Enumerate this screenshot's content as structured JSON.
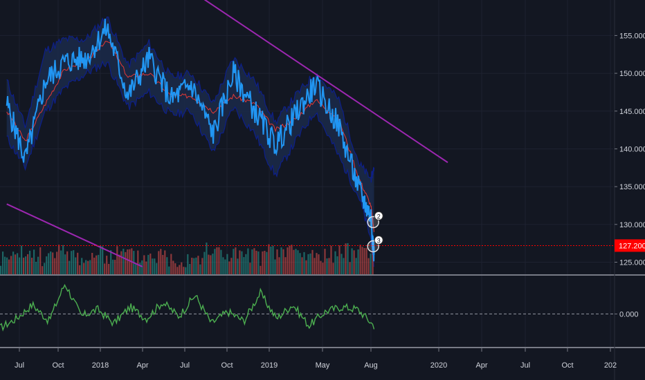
{
  "colors": {
    "background": "#131722",
    "price_line": "#2196f3",
    "ma_line": "#e53935",
    "band_fill": "#1b2a4a",
    "band_edge": "#0d1f8a",
    "trendline": "#9c27b0",
    "volume_up": "#26a69a",
    "volume_down": "#ef5350",
    "oscillator": "#4caf50",
    "current_price": "#ff0000",
    "text": "#d1d4dc",
    "divider": "#787b86"
  },
  "chart_data": [
    {
      "type": "line",
      "panel": "price",
      "y_ticks": [
        "155.000",
        "150.000",
        "145.000",
        "140.000",
        "135.000",
        "130.000",
        "125.000"
      ],
      "ylim": [
        123.4,
        159.7
      ],
      "current_price_label": "127.200",
      "current_price": 127.2,
      "x_dates": [
        "2017-06-01",
        "2017-07-15",
        "2017-09-01",
        "2017-10-15",
        "2017-12-01",
        "2018-01-15",
        "2018-03-01",
        "2018-04-15",
        "2018-06-01",
        "2018-07-15",
        "2018-09-01",
        "2018-10-15",
        "2018-12-01",
        "2019-01-15",
        "2019-03-01",
        "2019-04-15",
        "2019-06-01",
        "2019-07-10",
        "2019-08-01",
        "2019-08-08"
      ],
      "series": [
        {
          "values": [
            146.0,
            138.5,
            149.0,
            151.5,
            152.0,
            156.0,
            147.0,
            152.0,
            146.5,
            148.5,
            142.0,
            150.0,
            145.0,
            140.5,
            144.5,
            148.5,
            143.0,
            134.5,
            131.0,
            126.0
          ]
        },
        {
          "values": [
            145.0,
            141.0,
            146.0,
            150.5,
            151.5,
            154.5,
            149.5,
            150.0,
            147.0,
            147.0,
            145.0,
            147.0,
            146.0,
            142.5,
            144.0,
            146.5,
            144.0,
            136.0,
            132.5,
            129.0
          ]
        }
      ],
      "band_upper": [
        149.0,
        143.0,
        153.0,
        154.5,
        154.5,
        157.5,
        151.0,
        154.0,
        149.5,
        150.0,
        146.0,
        152.0,
        149.0,
        143.5,
        147.0,
        150.0,
        146.5,
        138.0,
        136.0,
        137.5
      ],
      "band_lower": [
        141.5,
        137.5,
        145.0,
        148.0,
        150.0,
        151.5,
        145.5,
        147.5,
        144.5,
        145.0,
        139.5,
        145.5,
        142.0,
        136.5,
        141.0,
        145.0,
        139.0,
        133.5,
        128.0,
        124.5
      ],
      "trendlines": [
        {
          "from": [
            "2018-07-01",
            161.5
          ],
          "to": [
            "2020-01-20",
            138.2
          ]
        },
        {
          "from": [
            "2017-06-01",
            132.7
          ],
          "to": [
            "2018-04-01",
            124.4
          ]
        }
      ],
      "markers": [
        "2",
        "3"
      ]
    },
    {
      "type": "bar",
      "panel": "volume",
      "note_values": "relative heights",
      "values": [
        0.3,
        0.5,
        0.4,
        0.6,
        0.35,
        0.45,
        0.55,
        0.4,
        0.5,
        0.3,
        0.45,
        0.65,
        0.5,
        0.4,
        0.55,
        0.7,
        0.45,
        0.5,
        0.6,
        0.8
      ]
    },
    {
      "type": "line",
      "panel": "oscillator",
      "y_ticks": [
        "0.000"
      ],
      "ylim": [
        -1.4,
        1.6
      ],
      "values": [
        -0.6,
        -0.2,
        0.4,
        -0.3,
        1.3,
        -0.1,
        0.2,
        -0.4,
        0.3,
        -0.2,
        0.5,
        -0.1,
        0.8,
        -0.4,
        0.1,
        -0.3,
        0.9,
        -0.2,
        0.4,
        -0.5,
        0.1,
        0.3,
        0.2,
        -0.5
      ]
    }
  ],
  "x_axis": {
    "labels": [
      "Jul",
      "Oct",
      "2018",
      "Apr",
      "Jul",
      "Oct",
      "2019",
      "May",
      "Aug",
      "2020",
      "Apr",
      "Jul",
      "Oct",
      "202"
    ],
    "dates": [
      "2017-07-01",
      "2017-10-01",
      "2018-01-01",
      "2018-04-01",
      "2018-07-01",
      "2018-10-01",
      "2019-01-01",
      "2019-05-01",
      "2019-08-01",
      "2020-01-01",
      "2020-04-01",
      "2020-07-01",
      "2020-10-01",
      "2021-01-01"
    ]
  }
}
